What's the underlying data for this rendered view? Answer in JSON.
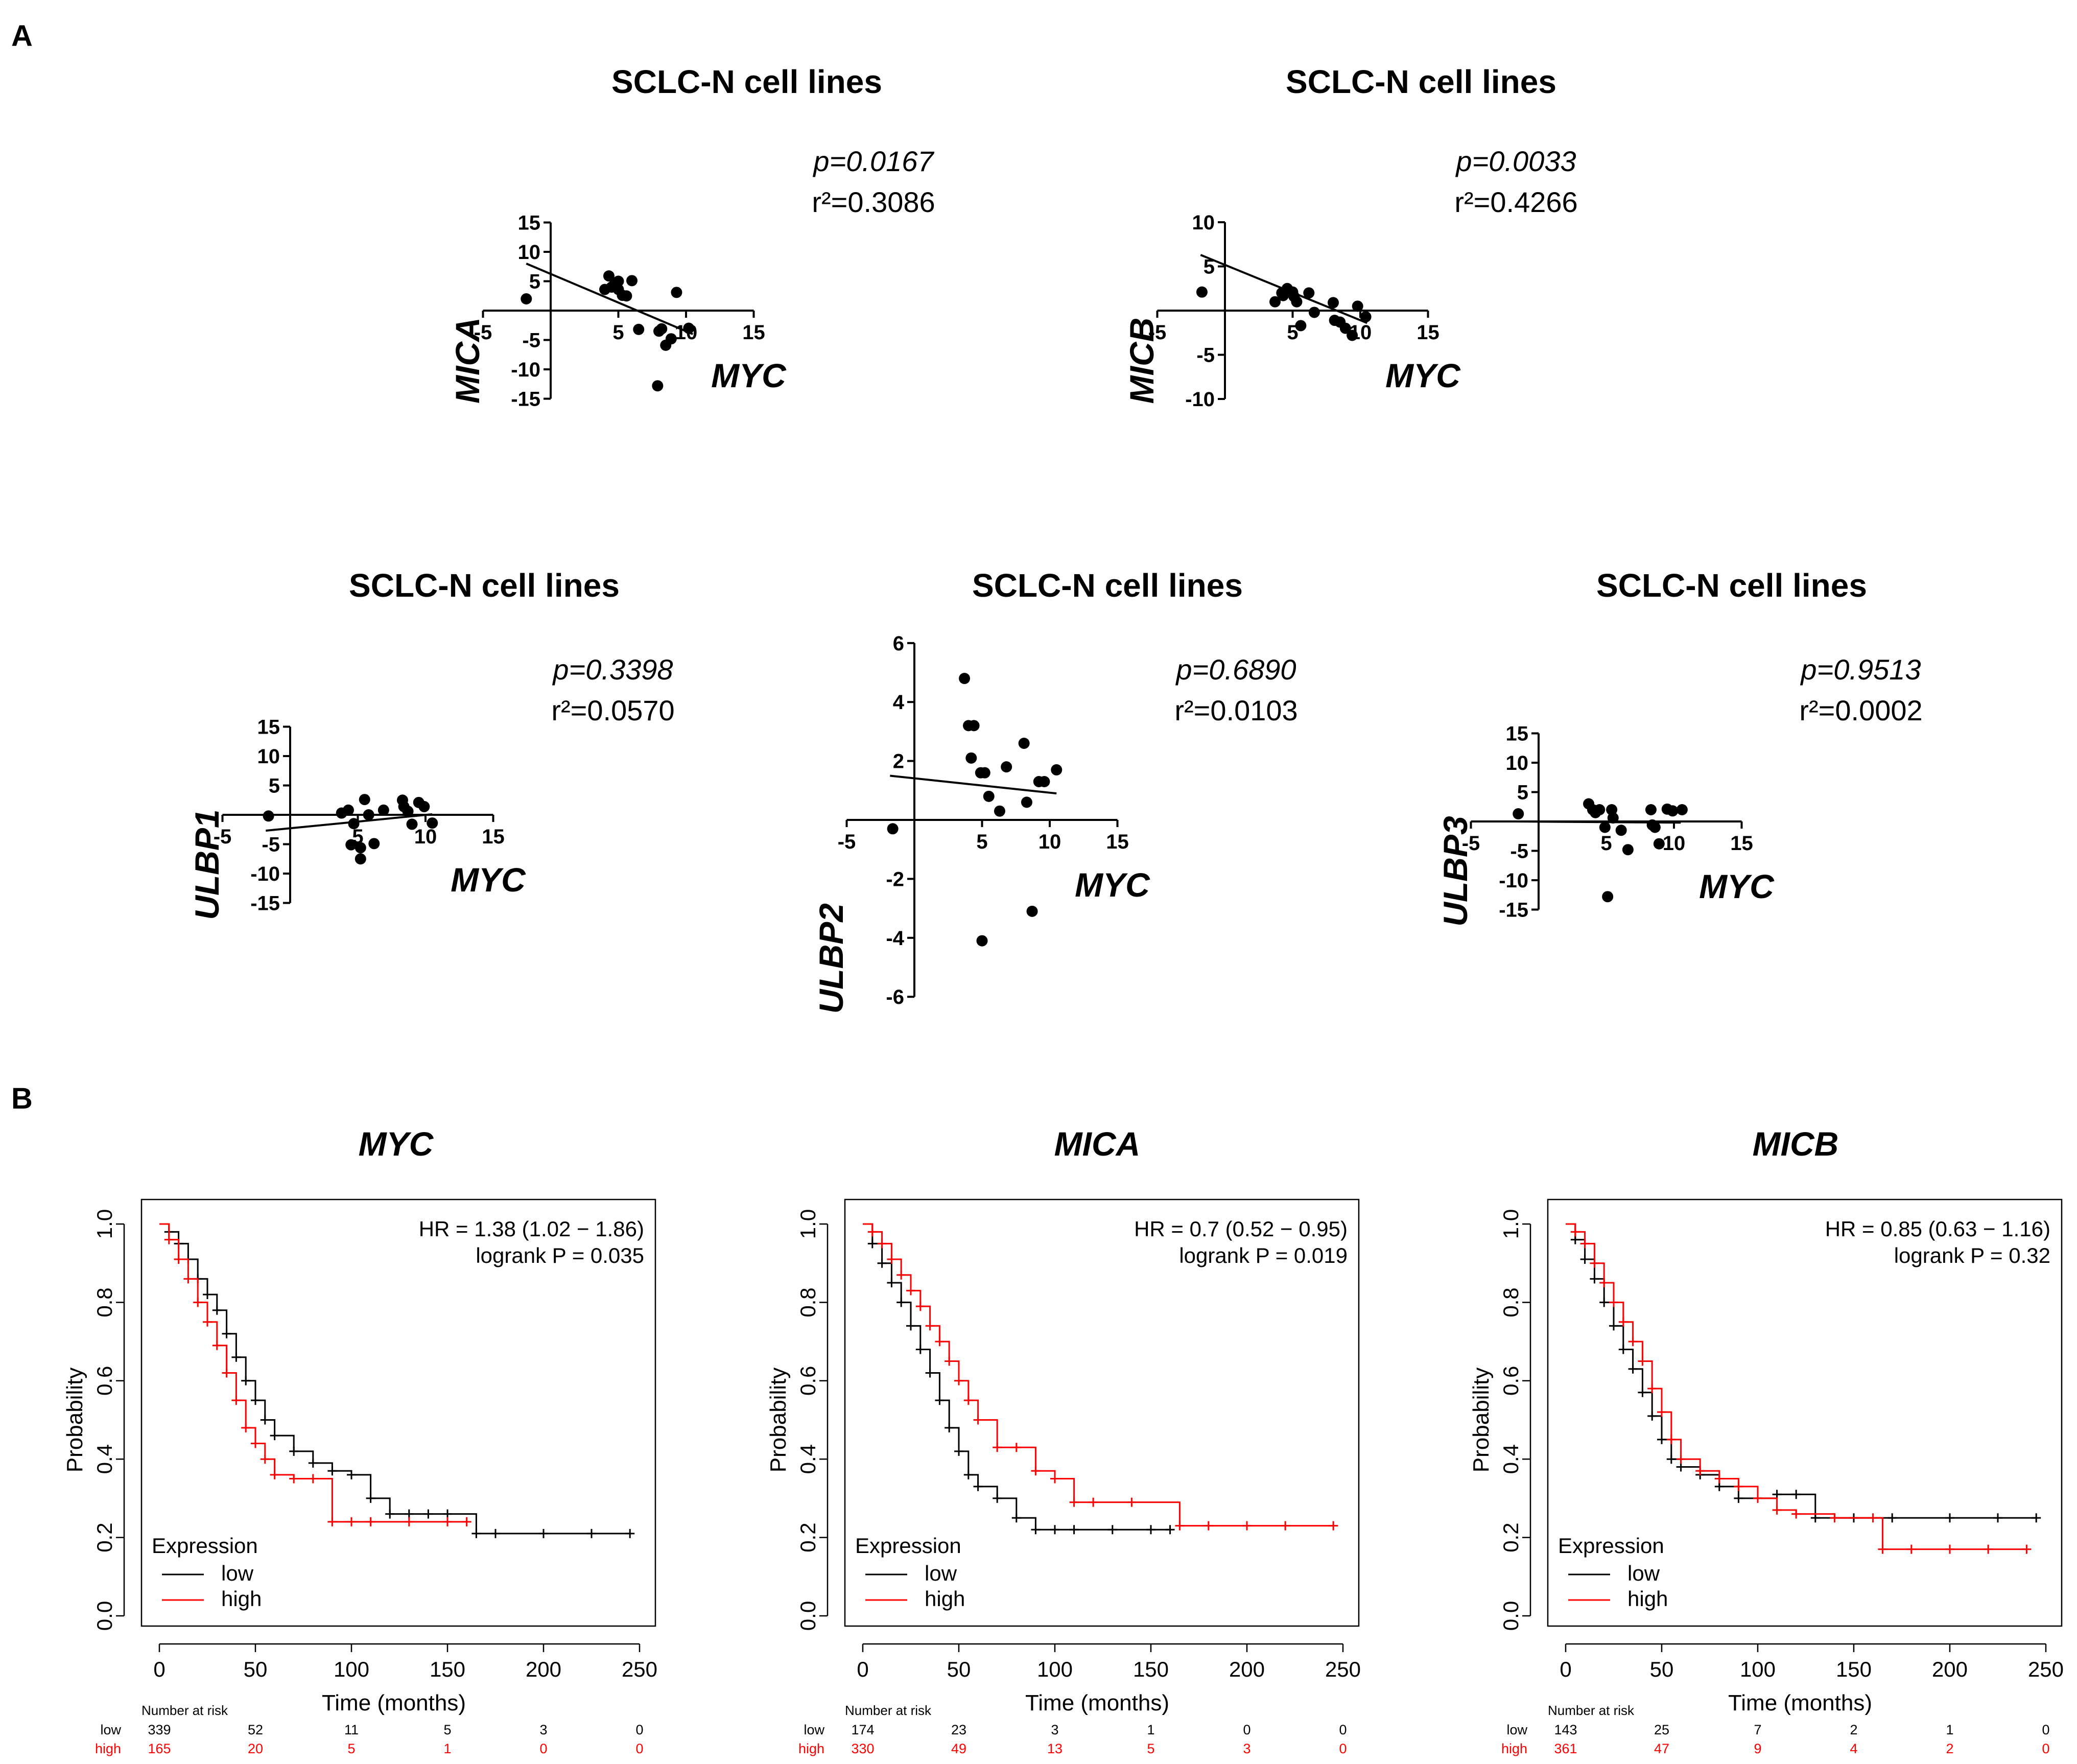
{
  "panel_labels": [
    "A",
    "B"
  ],
  "chart_data": [
    {
      "type": "scatter",
      "title": "SCLC-N cell lines",
      "xlabel": "MYC",
      "ylabel": "MICA",
      "xlim": [
        -5,
        15
      ],
      "ylim": [
        -15,
        15
      ],
      "xticks": [
        -5,
        5,
        10,
        15
      ],
      "yticks": [
        -15,
        -10,
        -5,
        5,
        10,
        15
      ],
      "p_text": "p=0.0167",
      "r2_text": "r²=0.3086",
      "regression": {
        "x": [
          -1.8,
          10.5
        ],
        "y": [
          8.0,
          -4.0
        ]
      },
      "points": [
        [
          -1.8,
          2.0
        ],
        [
          4.0,
          3.6
        ],
        [
          4.3,
          5.9
        ],
        [
          4.5,
          4.0
        ],
        [
          4.7,
          4.4
        ],
        [
          5.0,
          5.0
        ],
        [
          5.0,
          3.6
        ],
        [
          5.3,
          2.6
        ],
        [
          5.6,
          2.5
        ],
        [
          6.0,
          5.1
        ],
        [
          6.5,
          -3.2
        ],
        [
          8.0,
          -3.5
        ],
        [
          8.2,
          -3.1
        ],
        [
          8.5,
          -5.9
        ],
        [
          8.9,
          -4.8
        ],
        [
          9.3,
          3.1
        ],
        [
          10.2,
          -3.0
        ],
        [
          7.9,
          -12.8
        ]
      ]
    },
    {
      "type": "scatter",
      "title": "SCLC-N cell lines",
      "xlabel": "MYC",
      "ylabel": "MICB",
      "xlim": [
        -5,
        15
      ],
      "ylim": [
        -10,
        10
      ],
      "xticks": [
        -5,
        5,
        10,
        15
      ],
      "yticks": [
        -10,
        -5,
        5,
        10
      ],
      "p_text": "p=0.0033",
      "r2_text": "r²=0.4266",
      "regression": {
        "x": [
          -1.8,
          10.5
        ],
        "y": [
          6.3,
          -1.4
        ]
      },
      "points": [
        [
          -1.7,
          2.1
        ],
        [
          3.7,
          1.0
        ],
        [
          4.2,
          2.0
        ],
        [
          4.3,
          1.7
        ],
        [
          4.6,
          2.5
        ],
        [
          5.0,
          2.1
        ],
        [
          5.1,
          1.6
        ],
        [
          5.3,
          1.0
        ],
        [
          5.6,
          -1.7
        ],
        [
          6.2,
          2.0
        ],
        [
          6.6,
          -0.2
        ],
        [
          8.0,
          0.9
        ],
        [
          8.1,
          -1.1
        ],
        [
          8.5,
          -1.3
        ],
        [
          8.9,
          -2.0
        ],
        [
          9.4,
          -2.8
        ],
        [
          9.8,
          0.5
        ],
        [
          10.4,
          -0.7
        ]
      ]
    },
    {
      "type": "scatter",
      "title": "SCLC-N cell lines",
      "xlabel": "MYC",
      "ylabel": "ULBP1",
      "xlim": [
        -5,
        15
      ],
      "ylim": [
        -15,
        15
      ],
      "xticks": [
        -5,
        5,
        10,
        15
      ],
      "yticks": [
        -15,
        -10,
        -5,
        5,
        10,
        15
      ],
      "p_text": "p=0.3398",
      "r2_text": "r²=0.0570",
      "regression": {
        "x": [
          -1.8,
          10.5
        ],
        "y": [
          -2.7,
          0.1
        ]
      },
      "points": [
        [
          -1.6,
          -0.2
        ],
        [
          3.8,
          0.3
        ],
        [
          4.3,
          0.8
        ],
        [
          4.5,
          -5.1
        ],
        [
          4.7,
          -1.5
        ],
        [
          5.2,
          -5.6
        ],
        [
          5.2,
          -7.5
        ],
        [
          5.5,
          2.6
        ],
        [
          5.8,
          0.0
        ],
        [
          6.2,
          -4.9
        ],
        [
          6.9,
          0.8
        ],
        [
          8.3,
          2.5
        ],
        [
          8.4,
          1.4
        ],
        [
          8.7,
          0.6
        ],
        [
          9.0,
          -1.6
        ],
        [
          9.5,
          2.1
        ],
        [
          9.9,
          1.4
        ],
        [
          10.5,
          -1.4
        ]
      ]
    },
    {
      "type": "scatter",
      "title": "SCLC-N cell lines",
      "xlabel": "MYC",
      "ylabel": "ULBP2",
      "xlim": [
        -5,
        15
      ],
      "ylim": [
        -6,
        6
      ],
      "xticks": [
        -5,
        5,
        10,
        15
      ],
      "yticks": [
        -6,
        -4,
        -2,
        2,
        4,
        6
      ],
      "p_text": "p=0.6890",
      "r2_text": "r²=0.0103",
      "regression": {
        "x": [
          -1.8,
          10.5
        ],
        "y": [
          1.5,
          0.9
        ]
      },
      "points": [
        [
          -1.6,
          -0.3
        ],
        [
          3.7,
          4.8
        ],
        [
          4.0,
          3.2
        ],
        [
          4.2,
          2.1
        ],
        [
          4.4,
          3.2
        ],
        [
          4.9,
          1.6
        ],
        [
          5.0,
          -4.1
        ],
        [
          5.2,
          1.6
        ],
        [
          5.5,
          0.8
        ],
        [
          6.3,
          0.3
        ],
        [
          6.8,
          1.8
        ],
        [
          8.1,
          2.6
        ],
        [
          8.3,
          0.6
        ],
        [
          8.7,
          -3.1
        ],
        [
          9.2,
          1.3
        ],
        [
          9.6,
          1.3
        ],
        [
          10.5,
          1.7
        ]
      ]
    },
    {
      "type": "scatter",
      "title": "SCLC-N cell lines",
      "xlabel": "MYC",
      "ylabel": "ULBP3",
      "xlim": [
        -5,
        15
      ],
      "ylim": [
        -15,
        15
      ],
      "xticks": [
        -5,
        5,
        10,
        15
      ],
      "yticks": [
        -15,
        -10,
        -5,
        5,
        10,
        15
      ],
      "p_text": "p=0.9513",
      "r2_text": "r²=0.0002",
      "regression": {
        "x": [
          -1.8,
          10.5
        ],
        "y": [
          0.0,
          -0.2
        ]
      },
      "points": [
        [
          -1.5,
          1.3
        ],
        [
          3.7,
          3.0
        ],
        [
          4.0,
          2.0
        ],
        [
          4.2,
          1.5
        ],
        [
          4.5,
          2.0
        ],
        [
          4.9,
          -1.0
        ],
        [
          5.1,
          -12.8
        ],
        [
          5.4,
          2.0
        ],
        [
          5.5,
          0.6
        ],
        [
          6.1,
          -1.5
        ],
        [
          6.6,
          -4.8
        ],
        [
          8.3,
          2.0
        ],
        [
          8.4,
          -0.6
        ],
        [
          8.6,
          -1.0
        ],
        [
          8.9,
          -3.8
        ],
        [
          9.5,
          2.1
        ],
        [
          9.9,
          1.8
        ],
        [
          10.6,
          2.0
        ]
      ]
    },
    {
      "type": "line",
      "subtype": "kaplan-meier",
      "title": "MYC",
      "xlabel": "Time (months)",
      "ylabel": "Probability",
      "xlim": [
        0,
        250
      ],
      "ylim": [
        0,
        1
      ],
      "xticks": [
        0,
        50,
        100,
        150,
        200,
        250
      ],
      "yticks": [
        "0.0",
        "0.2",
        "0.4",
        "0.6",
        "0.8",
        "1.0"
      ],
      "hr_text": "HR = 1.38 (1.02 − 1.86)",
      "logrank_text": "logrank P = 0.035",
      "legend_title": "Expression",
      "legend": [
        {
          "name": "low",
          "color": "#000000"
        },
        {
          "name": "high",
          "color": "#ff0000"
        }
      ],
      "series": [
        {
          "name": "low",
          "color": "#000000",
          "x": [
            0,
            5,
            10,
            15,
            20,
            25,
            30,
            35,
            40,
            45,
            50,
            55,
            60,
            70,
            80,
            90,
            100,
            110,
            120,
            130,
            140,
            150,
            165,
            175,
            200,
            225,
            245
          ],
          "y": [
            1.0,
            0.98,
            0.95,
            0.91,
            0.86,
            0.82,
            0.78,
            0.72,
            0.66,
            0.6,
            0.55,
            0.5,
            0.46,
            0.42,
            0.39,
            0.37,
            0.36,
            0.3,
            0.26,
            0.26,
            0.26,
            0.26,
            0.21,
            0.21,
            0.21,
            0.21,
            0.21
          ]
        },
        {
          "name": "high",
          "color": "#ff0000",
          "x": [
            0,
            5,
            10,
            15,
            20,
            25,
            30,
            35,
            40,
            45,
            50,
            55,
            60,
            70,
            80,
            90,
            100,
            110,
            130,
            150,
            160
          ],
          "y": [
            1.0,
            0.96,
            0.91,
            0.86,
            0.8,
            0.75,
            0.69,
            0.62,
            0.55,
            0.48,
            0.44,
            0.4,
            0.36,
            0.35,
            0.35,
            0.24,
            0.24,
            0.24,
            0.24,
            0.24,
            0.24
          ]
        }
      ],
      "risk_table": {
        "title": "Number at risk",
        "rows": [
          {
            "name": "low",
            "color": "#000000",
            "values": [
              339,
              52,
              11,
              5,
              3,
              0
            ]
          },
          {
            "name": "high",
            "color": "#ff0000",
            "values": [
              165,
              20,
              5,
              1,
              0,
              0
            ]
          }
        ]
      }
    },
    {
      "type": "line",
      "subtype": "kaplan-meier",
      "title": "MICA",
      "xlabel": "Time (months)",
      "ylabel": "Probability",
      "xlim": [
        0,
        250
      ],
      "ylim": [
        0,
        1
      ],
      "xticks": [
        0,
        50,
        100,
        150,
        200,
        250
      ],
      "yticks": [
        "0.0",
        "0.2",
        "0.4",
        "0.6",
        "0.8",
        "1.0"
      ],
      "hr_text": "HR = 0.7 (0.52 − 0.95)",
      "logrank_text": "logrank P = 0.019",
      "legend_title": "Expression",
      "legend": [
        {
          "name": "low",
          "color": "#000000"
        },
        {
          "name": "high",
          "color": "#ff0000"
        }
      ],
      "series": [
        {
          "name": "low",
          "color": "#000000",
          "x": [
            0,
            5,
            10,
            15,
            20,
            25,
            30,
            35,
            40,
            45,
            50,
            55,
            60,
            70,
            80,
            90,
            100,
            110,
            130,
            150,
            160
          ],
          "y": [
            1.0,
            0.95,
            0.9,
            0.85,
            0.8,
            0.74,
            0.68,
            0.62,
            0.55,
            0.48,
            0.42,
            0.36,
            0.33,
            0.3,
            0.25,
            0.22,
            0.22,
            0.22,
            0.22,
            0.22,
            0.22
          ]
        },
        {
          "name": "high",
          "color": "#ff0000",
          "x": [
            0,
            5,
            10,
            15,
            20,
            25,
            30,
            35,
            40,
            45,
            50,
            55,
            60,
            70,
            80,
            90,
            100,
            110,
            120,
            140,
            165,
            180,
            200,
            220,
            245
          ],
          "y": [
            1.0,
            0.98,
            0.95,
            0.91,
            0.87,
            0.83,
            0.79,
            0.74,
            0.7,
            0.65,
            0.6,
            0.55,
            0.5,
            0.43,
            0.43,
            0.37,
            0.35,
            0.29,
            0.29,
            0.29,
            0.23,
            0.23,
            0.23,
            0.23,
            0.23
          ]
        }
      ],
      "risk_table": {
        "title": "Number at risk",
        "rows": [
          {
            "name": "low",
            "color": "#000000",
            "values": [
              174,
              23,
              3,
              1,
              0,
              0
            ]
          },
          {
            "name": "high",
            "color": "#ff0000",
            "values": [
              330,
              49,
              13,
              5,
              3,
              0
            ]
          }
        ]
      }
    },
    {
      "type": "line",
      "subtype": "kaplan-meier",
      "title": "MICB",
      "xlabel": "Time (months)",
      "ylabel": "Probability",
      "xlim": [
        0,
        250
      ],
      "ylim": [
        0,
        1
      ],
      "xticks": [
        0,
        50,
        100,
        150,
        200,
        250
      ],
      "yticks": [
        "0.0",
        "0.2",
        "0.4",
        "0.6",
        "0.8",
        "1.0"
      ],
      "hr_text": "HR = 0.85 (0.63 − 1.16)",
      "logrank_text": "logrank P = 0.32",
      "legend_title": "Expression",
      "legend": [
        {
          "name": "low",
          "color": "#000000"
        },
        {
          "name": "high",
          "color": "#ff0000"
        }
      ],
      "series": [
        {
          "name": "low",
          "color": "#000000",
          "x": [
            0,
            5,
            10,
            15,
            20,
            25,
            30,
            35,
            40,
            45,
            50,
            55,
            60,
            70,
            80,
            90,
            100,
            110,
            120,
            130,
            150,
            170,
            200,
            225,
            245
          ],
          "y": [
            1.0,
            0.96,
            0.91,
            0.86,
            0.8,
            0.74,
            0.68,
            0.63,
            0.57,
            0.51,
            0.45,
            0.4,
            0.38,
            0.36,
            0.33,
            0.3,
            0.3,
            0.31,
            0.31,
            0.25,
            0.25,
            0.25,
            0.25,
            0.25,
            0.25
          ]
        },
        {
          "name": "high",
          "color": "#ff0000",
          "x": [
            0,
            5,
            10,
            15,
            20,
            25,
            30,
            35,
            40,
            45,
            50,
            55,
            60,
            70,
            80,
            90,
            100,
            110,
            120,
            140,
            160,
            165,
            180,
            200,
            220,
            240
          ],
          "y": [
            1.0,
            0.98,
            0.95,
            0.9,
            0.85,
            0.8,
            0.75,
            0.7,
            0.65,
            0.58,
            0.52,
            0.45,
            0.4,
            0.37,
            0.35,
            0.33,
            0.3,
            0.27,
            0.26,
            0.25,
            0.25,
            0.17,
            0.17,
            0.17,
            0.17,
            0.17
          ]
        }
      ],
      "risk_table": {
        "title": "Number at risk",
        "rows": [
          {
            "name": "low",
            "color": "#000000",
            "values": [
              143,
              25,
              7,
              2,
              1,
              0
            ]
          },
          {
            "name": "high",
            "color": "#ff0000",
            "values": [
              361,
              47,
              9,
              4,
              2,
              0
            ]
          }
        ]
      }
    }
  ]
}
